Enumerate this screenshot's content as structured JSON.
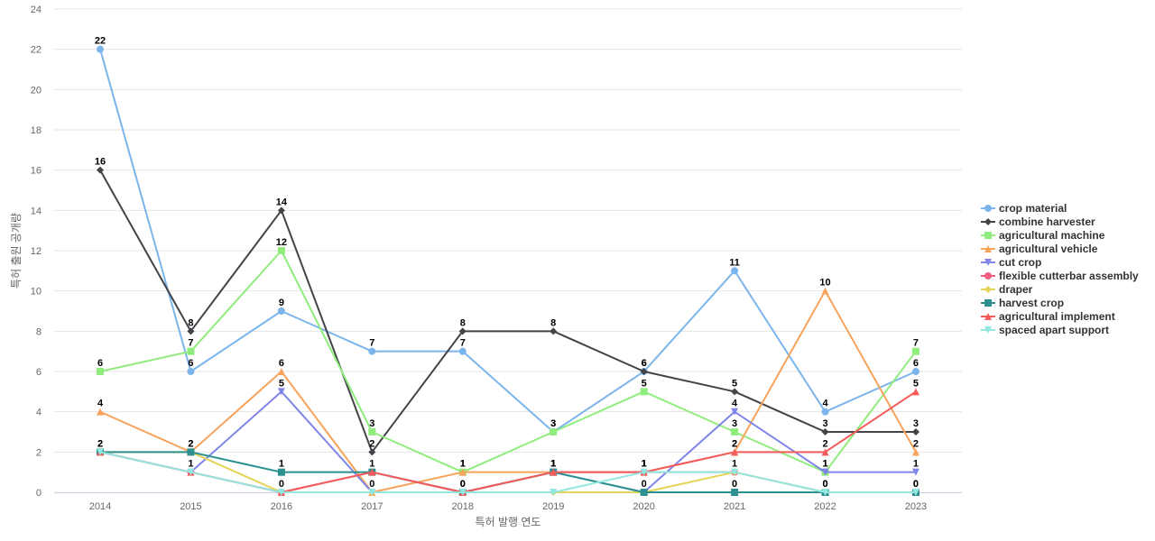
{
  "chart_data": {
    "type": "line",
    "title": "",
    "xlabel": "특허 발행 연도",
    "ylabel": "특허 출원 공개량",
    "ylim": [
      0,
      24
    ],
    "yticks": [
      0,
      2,
      4,
      6,
      8,
      10,
      12,
      14,
      16,
      18,
      20,
      22,
      24
    ],
    "grid": true,
    "legend_position": "right",
    "categories": [
      "2014",
      "2015",
      "2016",
      "2017",
      "2018",
      "2019",
      "2020",
      "2021",
      "2022",
      "2023"
    ],
    "series": [
      {
        "name": "crop material",
        "color": "#7cb5ec",
        "marker": "circle",
        "values": [
          22,
          6,
          9,
          7,
          7,
          3,
          6,
          11,
          4,
          6
        ]
      },
      {
        "name": "combine harvester",
        "color": "#434348",
        "marker": "diamond",
        "values": [
          16,
          8,
          14,
          2,
          8,
          8,
          6,
          5,
          3,
          3
        ]
      },
      {
        "name": "agricultural machine",
        "color": "#90ed7d",
        "marker": "square",
        "values": [
          6,
          7,
          12,
          3,
          1,
          3,
          5,
          3,
          1,
          7
        ]
      },
      {
        "name": "agricultural vehicle",
        "color": "#f7a35c",
        "marker": "triangle",
        "values": [
          4,
          2,
          6,
          0,
          1,
          1,
          1,
          2,
          10,
          2
        ]
      },
      {
        "name": "cut crop",
        "color": "#8085e9",
        "marker": "triangle-down",
        "values": [
          2,
          1,
          5,
          0,
          0,
          1,
          0,
          4,
          1,
          1
        ]
      },
      {
        "name": "flexible cutterbar assembly",
        "color": "#f15c80",
        "marker": "circle",
        "values": [
          2,
          1,
          0,
          1,
          0,
          1,
          1,
          1,
          0,
          0
        ]
      },
      {
        "name": "draper",
        "color": "#e4d354",
        "marker": "diamond",
        "values": [
          2,
          2,
          0,
          0,
          0,
          0,
          0,
          1,
          0,
          0
        ]
      },
      {
        "name": "harvest crop",
        "color": "#2b908f",
        "marker": "square",
        "values": [
          2,
          2,
          1,
          1,
          0,
          1,
          0,
          0,
          0,
          0
        ]
      },
      {
        "name": "agricultural implement",
        "color": "#f45b5b",
        "marker": "triangle",
        "values": [
          2,
          1,
          0,
          1,
          0,
          1,
          1,
          2,
          2,
          5
        ]
      },
      {
        "name": "spaced apart support",
        "color": "#91e8e1",
        "marker": "triangle-down",
        "values": [
          2,
          1,
          0,
          0,
          0,
          0,
          1,
          1,
          0,
          0
        ]
      }
    ],
    "data_labels": [
      {
        "series": 0,
        "indices": [
          0,
          1,
          2,
          3,
          4,
          5,
          6,
          7,
          8,
          9
        ]
      },
      {
        "series": 1,
        "indices": [
          0,
          1,
          2,
          3,
          4,
          5,
          6,
          7,
          8,
          9
        ]
      },
      {
        "series": 2,
        "indices": [
          0,
          1,
          2,
          3,
          4,
          5,
          6,
          7,
          8,
          9
        ]
      },
      {
        "series": 3,
        "indices": [
          0,
          1,
          2,
          3,
          4,
          5,
          6,
          7,
          8,
          9
        ]
      },
      {
        "series": 4,
        "indices": [
          2,
          7,
          8,
          9
        ]
      },
      {
        "series": 5,
        "indices": [
          3,
          4,
          5,
          6,
          7,
          8,
          9
        ]
      },
      {
        "series": 7,
        "indices": [
          0,
          1,
          2,
          5,
          6,
          7,
          8,
          9
        ]
      },
      {
        "series": 8,
        "indices": [
          0,
          1,
          2,
          4,
          5,
          6,
          7,
          8,
          9
        ]
      }
    ]
  }
}
